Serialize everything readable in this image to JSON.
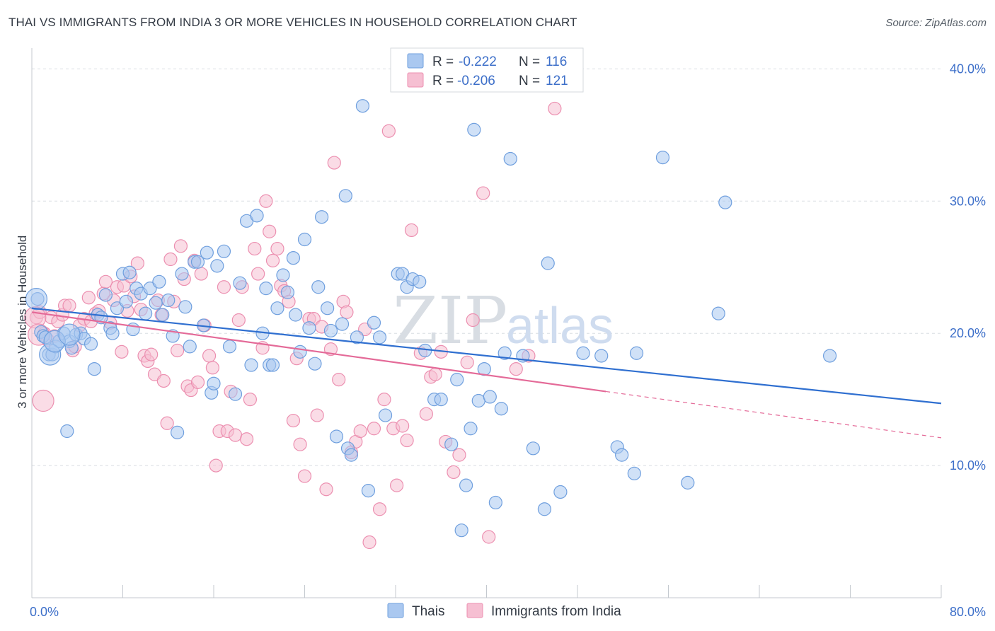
{
  "header": {
    "title": "THAI VS IMMIGRANTS FROM INDIA 3 OR MORE VEHICLES IN HOUSEHOLD CORRELATION CHART",
    "source": "Source: ZipAtlas.com"
  },
  "watermark": {
    "zip": "ZIP",
    "atlas": "atlas"
  },
  "legend_top": {
    "rows": [
      {
        "r_label": "R =",
        "r_value": "-0.222",
        "n_label": "N =",
        "n_value": "116"
      },
      {
        "r_label": "R =",
        "r_value": "-0.206",
        "n_label": "N =",
        "n_value": "121"
      }
    ]
  },
  "colors": {
    "thai_fill": "#aac8f0",
    "thai_stroke": "#6f9fde",
    "thai_line": "#2f6fd0",
    "india_fill": "#f6bfd2",
    "india_stroke": "#ec8fb0",
    "india_line": "#e46a98",
    "grid": "#d9dde2",
    "axis_text": "#3d6fc9"
  },
  "chart_data": {
    "type": "scatter",
    "title": "THAI VS IMMIGRANTS FROM INDIA 3 OR MORE VEHICLES IN HOUSEHOLD CORRELATION CHART",
    "xlabel": "",
    "ylabel": "3 or more Vehicles in Household",
    "xlim": [
      0,
      80
    ],
    "ylim": [
      0,
      42
    ],
    "x_ticks": [
      "0.0%",
      "80.0%"
    ],
    "y_ticks": [
      {
        "value": 10,
        "label": "10.0%"
      },
      {
        "value": 20,
        "label": "20.0%"
      },
      {
        "value": 30,
        "label": "30.0%"
      },
      {
        "value": 40,
        "label": "40.0%"
      }
    ],
    "legend_placement": "top-center",
    "grid": true,
    "series": [
      {
        "name": "Thais",
        "r": -0.222,
        "n": 116,
        "trend": {
          "x": [
            0,
            80
          ],
          "y": [
            21.9,
            14.7
          ]
        },
        "points": [
          [
            0.5,
            22.6
          ],
          [
            0.8,
            20.1
          ],
          [
            1.0,
            19.8
          ],
          [
            1.2,
            19.7
          ],
          [
            1.5,
            18.4
          ],
          [
            1.8,
            18.4
          ],
          [
            2.1,
            19.0
          ],
          [
            2.4,
            19.4
          ],
          [
            2.8,
            20.0
          ],
          [
            3.1,
            12.6
          ],
          [
            3.3,
            19.4
          ],
          [
            3.5,
            18.9
          ],
          [
            3.9,
            19.9
          ],
          [
            4.3,
            20.0
          ],
          [
            4.6,
            19.6
          ],
          [
            5.2,
            19.2
          ],
          [
            5.5,
            17.3
          ],
          [
            5.8,
            21.4
          ],
          [
            6.1,
            21.2
          ],
          [
            6.5,
            22.9
          ],
          [
            6.9,
            20.4
          ],
          [
            7.1,
            20.0
          ],
          [
            7.5,
            21.9
          ],
          [
            8.0,
            24.5
          ],
          [
            8.3,
            22.4
          ],
          [
            8.6,
            24.6
          ],
          [
            8.9,
            20.3
          ],
          [
            9.2,
            23.4
          ],
          [
            9.6,
            23.0
          ],
          [
            10.0,
            21.5
          ],
          [
            10.4,
            23.4
          ],
          [
            10.9,
            22.3
          ],
          [
            11.2,
            23.9
          ],
          [
            11.5,
            21.4
          ],
          [
            12.0,
            22.5
          ],
          [
            12.4,
            19.8
          ],
          [
            12.8,
            12.5
          ],
          [
            13.2,
            24.5
          ],
          [
            13.5,
            22.0
          ],
          [
            13.9,
            19.0
          ],
          [
            14.3,
            25.4
          ],
          [
            14.6,
            25.4
          ],
          [
            15.1,
            20.6
          ],
          [
            15.4,
            26.1
          ],
          [
            15.8,
            15.5
          ],
          [
            16.0,
            16.2
          ],
          [
            16.3,
            25.1
          ],
          [
            16.9,
            26.2
          ],
          [
            17.4,
            19.0
          ],
          [
            17.9,
            15.4
          ],
          [
            18.3,
            23.8
          ],
          [
            18.9,
            28.5
          ],
          [
            19.3,
            17.6
          ],
          [
            19.8,
            28.9
          ],
          [
            20.3,
            20.0
          ],
          [
            20.6,
            23.4
          ],
          [
            20.9,
            17.6
          ],
          [
            21.2,
            17.6
          ],
          [
            21.6,
            21.9
          ],
          [
            22.1,
            24.4
          ],
          [
            22.5,
            23.1
          ],
          [
            23.0,
            25.7
          ],
          [
            23.2,
            21.4
          ],
          [
            23.6,
            18.6
          ],
          [
            24.0,
            27.1
          ],
          [
            24.4,
            20.4
          ],
          [
            24.9,
            17.7
          ],
          [
            25.2,
            23.5
          ],
          [
            25.5,
            28.8
          ],
          [
            26.0,
            21.9
          ],
          [
            26.3,
            20.2
          ],
          [
            26.8,
            12.2
          ],
          [
            27.3,
            20.7
          ],
          [
            27.6,
            30.4
          ],
          [
            27.8,
            11.3
          ],
          [
            28.1,
            10.8
          ],
          [
            28.6,
            19.7
          ],
          [
            29.1,
            37.2
          ],
          [
            29.6,
            8.1
          ],
          [
            30.1,
            20.8
          ],
          [
            30.6,
            19.7
          ],
          [
            31.1,
            13.8
          ],
          [
            32.2,
            24.5
          ],
          [
            32.6,
            24.5
          ],
          [
            33.0,
            23.5
          ],
          [
            33.5,
            24.1
          ],
          [
            34.1,
            23.9
          ],
          [
            34.6,
            18.7
          ],
          [
            35.4,
            15.0
          ],
          [
            36.0,
            15.0
          ],
          [
            36.9,
            11.6
          ],
          [
            37.4,
            16.5
          ],
          [
            37.8,
            5.1
          ],
          [
            38.2,
            8.5
          ],
          [
            38.6,
            12.8
          ],
          [
            38.9,
            35.4
          ],
          [
            39.3,
            14.9
          ],
          [
            39.8,
            17.3
          ],
          [
            40.3,
            15.2
          ],
          [
            40.8,
            7.2
          ],
          [
            41.3,
            14.3
          ],
          [
            41.6,
            18.5
          ],
          [
            42.1,
            33.2
          ],
          [
            43.2,
            18.3
          ],
          [
            44.1,
            11.3
          ],
          [
            45.1,
            6.7
          ],
          [
            45.4,
            25.3
          ],
          [
            46.5,
            8.0
          ],
          [
            48.5,
            18.5
          ],
          [
            50.1,
            18.3
          ],
          [
            51.5,
            11.4
          ],
          [
            51.9,
            10.8
          ],
          [
            53.0,
            9.4
          ],
          [
            53.2,
            18.5
          ],
          [
            55.5,
            33.3
          ],
          [
            57.7,
            8.7
          ],
          [
            60.4,
            21.5
          ],
          [
            61.0,
            29.9
          ],
          [
            70.2,
            18.3
          ]
        ],
        "big_points": [
          [
            0.4,
            22.6
          ],
          [
            1.6,
            18.4
          ],
          [
            2.0,
            19.4
          ],
          [
            3.3,
            19.9
          ]
        ]
      },
      {
        "name": "Immigrants from India",
        "r": -0.206,
        "n": 121,
        "trend": {
          "x": [
            0,
            50.5
          ],
          "y": [
            21.6,
            15.6
          ]
        },
        "trend_dashed": {
          "x": [
            50.5,
            80
          ],
          "y": [
            15.6,
            12.1
          ]
        },
        "points": [
          [
            0.4,
            21.2
          ],
          [
            0.7,
            21.6
          ],
          [
            1.1,
            20.0
          ],
          [
            1.4,
            19.5
          ],
          [
            1.7,
            21.2
          ],
          [
            2.0,
            19.8
          ],
          [
            2.3,
            20.9
          ],
          [
            2.7,
            21.4
          ],
          [
            2.9,
            22.1
          ],
          [
            3.3,
            22.1
          ],
          [
            3.6,
            18.7
          ],
          [
            3.8,
            19.0
          ],
          [
            4.2,
            20.6
          ],
          [
            4.6,
            21.1
          ],
          [
            5.0,
            22.7
          ],
          [
            5.2,
            20.9
          ],
          [
            5.6,
            21.5
          ],
          [
            5.9,
            21.7
          ],
          [
            6.3,
            23.0
          ],
          [
            6.5,
            23.9
          ],
          [
            6.9,
            20.8
          ],
          [
            7.2,
            22.5
          ],
          [
            7.5,
            23.5
          ],
          [
            7.9,
            18.6
          ],
          [
            8.1,
            23.6
          ],
          [
            8.4,
            21.7
          ],
          [
            8.7,
            24.3
          ],
          [
            9.0,
            22.8
          ],
          [
            9.3,
            25.3
          ],
          [
            9.6,
            21.8
          ],
          [
            9.9,
            18.3
          ],
          [
            10.2,
            17.9
          ],
          [
            10.5,
            18.4
          ],
          [
            10.8,
            16.9
          ],
          [
            11.1,
            22.5
          ],
          [
            11.4,
            21.4
          ],
          [
            11.6,
            16.4
          ],
          [
            11.9,
            13.2
          ],
          [
            12.2,
            25.6
          ],
          [
            12.5,
            22.4
          ],
          [
            12.8,
            18.7
          ],
          [
            13.1,
            26.6
          ],
          [
            13.4,
            24.1
          ],
          [
            13.7,
            16.0
          ],
          [
            14.0,
            15.7
          ],
          [
            14.3,
            25.5
          ],
          [
            14.6,
            16.3
          ],
          [
            14.9,
            24.5
          ],
          [
            15.2,
            20.6
          ],
          [
            15.6,
            18.3
          ],
          [
            15.9,
            17.4
          ],
          [
            16.2,
            10.0
          ],
          [
            16.5,
            12.6
          ],
          [
            16.9,
            23.5
          ],
          [
            17.2,
            12.6
          ],
          [
            17.5,
            15.6
          ],
          [
            17.9,
            12.3
          ],
          [
            18.2,
            21.0
          ],
          [
            18.5,
            23.5
          ],
          [
            18.9,
            12.0
          ],
          [
            19.2,
            15.0
          ],
          [
            19.6,
            26.4
          ],
          [
            19.9,
            24.5
          ],
          [
            20.3,
            18.9
          ],
          [
            20.6,
            30.0
          ],
          [
            20.9,
            27.7
          ],
          [
            21.2,
            25.5
          ],
          [
            21.6,
            26.4
          ],
          [
            21.9,
            23.6
          ],
          [
            22.2,
            23.2
          ],
          [
            22.6,
            22.4
          ],
          [
            23.0,
            13.4
          ],
          [
            23.3,
            18.1
          ],
          [
            23.6,
            11.6
          ],
          [
            24.0,
            9.2
          ],
          [
            24.4,
            21.1
          ],
          [
            24.8,
            21.1
          ],
          [
            25.1,
            13.8
          ],
          [
            25.5,
            20.5
          ],
          [
            25.9,
            8.2
          ],
          [
            26.3,
            18.8
          ],
          [
            26.6,
            32.9
          ],
          [
            27.0,
            16.5
          ],
          [
            27.4,
            22.4
          ],
          [
            27.7,
            21.6
          ],
          [
            28.1,
            11.0
          ],
          [
            28.5,
            11.8
          ],
          [
            28.9,
            12.6
          ],
          [
            29.3,
            20.3
          ],
          [
            29.7,
            4.2
          ],
          [
            30.1,
            12.8
          ],
          [
            30.6,
            6.7
          ],
          [
            31.0,
            15.0
          ],
          [
            31.4,
            35.3
          ],
          [
            31.8,
            12.8
          ],
          [
            32.1,
            8.5
          ],
          [
            32.6,
            13.0
          ],
          [
            33.0,
            11.9
          ],
          [
            33.4,
            27.8
          ],
          [
            34.2,
            18.5
          ],
          [
            34.7,
            13.9
          ],
          [
            35.1,
            16.7
          ],
          [
            35.5,
            16.9
          ],
          [
            36.0,
            18.6
          ],
          [
            36.4,
            11.8
          ],
          [
            37.1,
            9.5
          ],
          [
            37.6,
            10.8
          ],
          [
            38.3,
            17.8
          ],
          [
            38.8,
            21.0
          ],
          [
            39.7,
            30.6
          ],
          [
            40.2,
            4.6
          ],
          [
            42.6,
            17.3
          ],
          [
            43.7,
            18.3
          ],
          [
            46.0,
            37.0
          ]
        ],
        "big_points": [
          [
            0.3,
            21.2
          ],
          [
            0.6,
            19.9
          ],
          [
            1.0,
            14.9
          ]
        ]
      }
    ]
  },
  "legend_bottom": {
    "items": [
      {
        "label": "Thais"
      },
      {
        "label": "Immigrants from India"
      }
    ]
  }
}
